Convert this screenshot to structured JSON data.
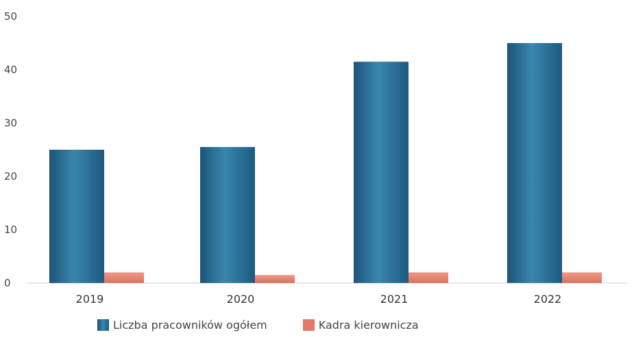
{
  "chart_data": {
    "type": "bar",
    "categories": [
      "2019",
      "2020",
      "2021",
      "2022"
    ],
    "series": [
      {
        "name": "Liczba pracowników ogółem",
        "values": [
          25,
          25.5,
          41.5,
          45
        ],
        "color": "#2a6f95"
      },
      {
        "name": "Kadra kierownicza",
        "values": [
          2,
          1.5,
          2,
          2
        ],
        "color": "#e07a68"
      }
    ],
    "yticks": [
      "0",
      "10",
      "20",
      "30",
      "40",
      "50"
    ],
    "ylim": [
      0,
      50
    ],
    "grid": false,
    "legend_position": "bottom"
  }
}
